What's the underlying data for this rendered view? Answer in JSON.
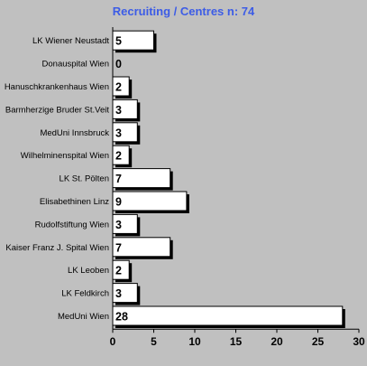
{
  "chart_data": {
    "type": "bar",
    "orientation": "horizontal",
    "title": "Recruiting / Centres  n: 74",
    "categories": [
      "LK Wiener Neustadt",
      "Donauspital Wien",
      "Hanuschkrankenhaus Wien",
      "Barmherzige Bruder St.Veit",
      "MedUni Innsbruck",
      "Wilhelminenspital Wien",
      "LK St. Pölten",
      "Elisabethinen Linz",
      "Rudolfstiftung Wien",
      "Kaiser Franz J. Spital Wien",
      "LK Leoben",
      "LK Feldkirch",
      "MedUni Wien"
    ],
    "values": [
      5,
      0,
      2,
      3,
      3,
      2,
      7,
      9,
      3,
      7,
      2,
      3,
      28
    ],
    "xlim": [
      0,
      30
    ],
    "xticks": [
      0,
      5,
      10,
      15,
      20,
      25,
      30
    ],
    "xlabel": "",
    "ylabel": "",
    "grid": false,
    "legend": "none",
    "colors": {
      "background": "#c0c0c0",
      "bar_fill": "#ffffff",
      "bar_stroke": "#000000",
      "bar_shadow": "#000000",
      "title": "#3c5ce6"
    }
  }
}
